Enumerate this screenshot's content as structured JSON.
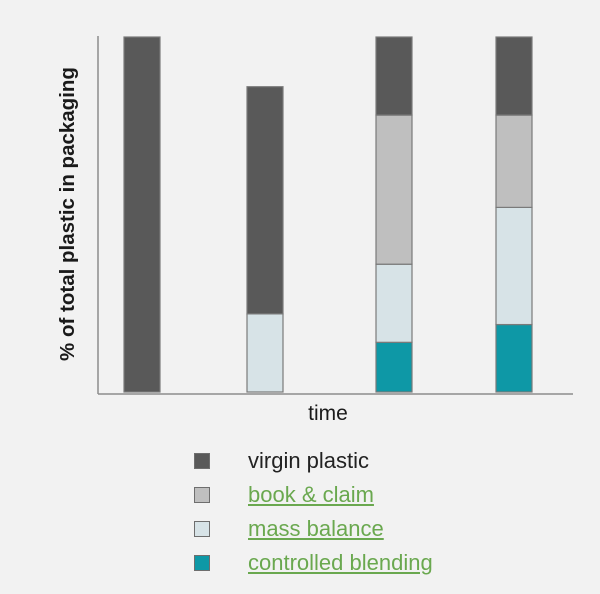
{
  "chart_data": {
    "type": "bar",
    "stacked": true,
    "title": "",
    "xlabel": "time",
    "ylabel": "% of total plastic in packaging",
    "ylim": [
      0,
      100
    ],
    "categories": [
      "",
      "",
      "",
      ""
    ],
    "grid": false,
    "legend_position": "bottom",
    "series": [
      {
        "name": "virgin plastic",
        "values": [
          100,
          64,
          22,
          22
        ],
        "color": "#595959",
        "link": false
      },
      {
        "name": "book & claim",
        "values": [
          0,
          0,
          42,
          26
        ],
        "color": "#bfbfbf",
        "link": true
      },
      {
        "name": "mass balance",
        "values": [
          0,
          22,
          22,
          33
        ],
        "color": "#d7e3e7",
        "link": true
      },
      {
        "name": "controlled blending",
        "values": [
          0,
          0,
          14,
          19
        ],
        "color": "#0e98a6",
        "link": true
      }
    ],
    "stack_order_bottom_to_top": [
      "controlled blending",
      "mass balance",
      "book & claim",
      "virgin plastic"
    ]
  }
}
